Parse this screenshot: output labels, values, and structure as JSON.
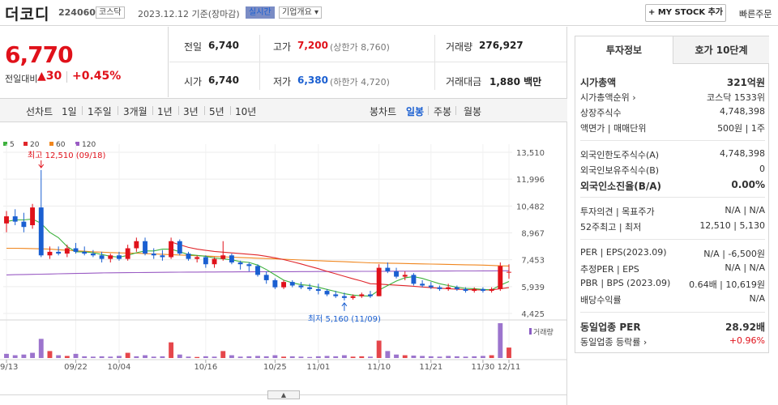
{
  "header": {
    "stock_name": "더코디",
    "stock_code": "224060",
    "market_tag": "코스닥",
    "date": "2023.12.12  기준(장마감)",
    "realtime_tag": "실시간",
    "company_tag": "기업개요 ▾",
    "mystock_button": "+ MY STOCK 추가",
    "quick_order": "빠른주문"
  },
  "price": {
    "current": "6,770",
    "vs_label": "전일대비",
    "change": "▲30",
    "change_pct": "+0.45%"
  },
  "quote": {
    "prev_close_label": "전일",
    "prev_close": "6,740",
    "high_label": "고가",
    "high": "7,200",
    "upper_limit": "(상한가 8,760)",
    "volume_label": "거래량",
    "volume": "276,927",
    "open_label": "시가",
    "open": "6,740",
    "low_label": "저가",
    "low": "6,380",
    "lower_limit": "(하한가 4,720)",
    "amount_label": "거래대금",
    "amount": "1,880 백만"
  },
  "period_tabs": {
    "line_label": "선차트",
    "line_items": [
      "1일",
      "1주일",
      "3개월",
      "1년",
      "3년",
      "5년",
      "10년"
    ],
    "candle_label": "봉차트",
    "candle_items": [
      "일봉",
      "주봉",
      "월봉"
    ],
    "active_candle": "일봉"
  },
  "chart_data": {
    "type": "candlestick",
    "ma_legend": [
      {
        "name": "5",
        "color": "#3db13d"
      },
      {
        "name": "20",
        "color": "#e0262b"
      },
      {
        "name": "60",
        "color": "#f0861e"
      },
      {
        "name": "120",
        "color": "#9a5cc4"
      }
    ],
    "y_ticks": [
      13510,
      11996,
      10482,
      8967,
      7453,
      5939,
      4425
    ],
    "y_tick_labels": [
      "13,510",
      "11,996",
      "10,482",
      "8,967",
      "7,453",
      "5,939",
      "4,425"
    ],
    "ylim": [
      4425,
      13510
    ],
    "x_labels": [
      "09/13",
      "09/22",
      "10/04",
      "10/16",
      "10/25",
      "11/01",
      "11/10",
      "11/21",
      "11/30",
      "12/11"
    ],
    "high_annotation": "최고 12,510 (09/18)",
    "low_annotation": "최저 5,160 (11/09)",
    "volume_label": "거래량",
    "candles": [
      [
        9500,
        10200,
        9000,
        9900
      ],
      [
        9900,
        10300,
        9400,
        9600
      ],
      [
        9600,
        10100,
        9000,
        9300
      ],
      [
        9400,
        10600,
        9200,
        10400
      ],
      [
        10400,
        12510,
        7600,
        7700
      ],
      [
        7700,
        8200,
        7500,
        7900
      ],
      [
        7900,
        8200,
        7700,
        7800
      ],
      [
        7800,
        8300,
        7600,
        8100
      ],
      [
        8100,
        8400,
        7800,
        7900
      ],
      [
        7900,
        8200,
        7700,
        7800
      ],
      [
        7800,
        8000,
        7600,
        7700
      ],
      [
        7700,
        7900,
        7300,
        7500
      ],
      [
        7500,
        7800,
        7300,
        7700
      ],
      [
        7700,
        7900,
        7400,
        7500
      ],
      [
        7500,
        8300,
        7400,
        8100
      ],
      [
        8100,
        8700,
        7900,
        8500
      ],
      [
        8500,
        8700,
        7700,
        7800
      ],
      [
        7800,
        8100,
        7500,
        7700
      ],
      [
        7700,
        8000,
        7400,
        7600
      ],
      [
        7600,
        8700,
        7500,
        8500
      ],
      [
        8500,
        8600,
        7700,
        7800
      ],
      [
        7800,
        7900,
        7400,
        7500
      ],
      [
        7500,
        7700,
        7300,
        7600
      ],
      [
        7600,
        7700,
        7000,
        7200
      ],
      [
        7200,
        7600,
        7000,
        7500
      ],
      [
        7500,
        8500,
        7400,
        7700
      ],
      [
        7700,
        7800,
        7200,
        7300
      ],
      [
        7300,
        7400,
        6900,
        7200
      ],
      [
        7200,
        7300,
        6800,
        7100
      ],
      [
        7100,
        7200,
        6500,
        6600
      ],
      [
        6600,
        6800,
        6100,
        6300
      ],
      [
        6300,
        6400,
        5800,
        5900
      ],
      [
        5900,
        6300,
        5800,
        6200
      ],
      [
        6200,
        6300,
        5900,
        6000
      ],
      [
        6000,
        6200,
        5800,
        5900
      ],
      [
        5900,
        6100,
        5700,
        5800
      ],
      [
        5800,
        6100,
        5500,
        5700
      ],
      [
        5700,
        5800,
        5400,
        5500
      ],
      [
        5500,
        5700,
        5300,
        5400
      ],
      [
        5400,
        5600,
        5160,
        5300
      ],
      [
        5300,
        5500,
        5200,
        5400
      ],
      [
        5400,
        5600,
        5300,
        5500
      ],
      [
        5500,
        5700,
        5300,
        5400
      ],
      [
        5400,
        7200,
        5400,
        7000
      ],
      [
        7000,
        7300,
        6700,
        6800
      ],
      [
        6800,
        7000,
        6400,
        6500
      ],
      [
        6500,
        6800,
        6300,
        6600
      ],
      [
        6600,
        6700,
        6000,
        6100
      ],
      [
        6100,
        6300,
        5900,
        6000
      ],
      [
        6000,
        6200,
        5800,
        5900
      ],
      [
        5900,
        6000,
        5700,
        5800
      ],
      [
        5800,
        6100,
        5700,
        5900
      ],
      [
        5900,
        6000,
        5700,
        5800
      ],
      [
        5800,
        5900,
        5600,
        5700
      ],
      [
        5700,
        5900,
        5600,
        5800
      ],
      [
        5800,
        5900,
        5600,
        5700
      ],
      [
        5700,
        5900,
        5600,
        5800
      ],
      [
        5800,
        7300,
        5700,
        7100
      ],
      [
        6740,
        7200,
        6380,
        6770
      ]
    ],
    "volumes": [
      0.12,
      0.08,
      0.1,
      0.15,
      0.55,
      0.2,
      0.08,
      0.06,
      0.12,
      0.05,
      0.04,
      0.05,
      0.04,
      0.06,
      0.15,
      0.05,
      0.08,
      0.04,
      0.05,
      0.45,
      0.1,
      0.04,
      0.03,
      0.05,
      0.04,
      0.2,
      0.08,
      0.04,
      0.05,
      0.06,
      0.05,
      0.08,
      0.04,
      0.05,
      0.04,
      0.03,
      0.05,
      0.06,
      0.05,
      0.08,
      0.04,
      0.05,
      0.04,
      0.5,
      0.2,
      0.1,
      0.08,
      0.07,
      0.06,
      0.05,
      0.04,
      0.06,
      0.05,
      0.04,
      0.05,
      0.06,
      0.08,
      1.0,
      0.3
    ],
    "ma5": [
      9600,
      9700,
      9700,
      9750,
      9500,
      9000,
      8700,
      8200,
      7900,
      7900,
      7850,
      7750,
      7650,
      7600,
      7700,
      7850,
      7950,
      7950,
      8050,
      8050,
      7900,
      7750,
      7700,
      7650,
      7550,
      7500,
      7450,
      7350,
      7300,
      7150,
      6900,
      6600,
      6300,
      6150,
      6050,
      6000,
      5900,
      5780,
      5660,
      5540,
      5460,
      5420,
      5400,
      5740,
      6000,
      6250,
      6440,
      6500,
      6400,
      6250,
      6100,
      6000,
      5900,
      5840,
      5820,
      5780,
      5760,
      6020,
      6230
    ],
    "ma20": [
      null,
      null,
      null,
      null,
      null,
      null,
      null,
      null,
      null,
      null,
      null,
      null,
      null,
      null,
      null,
      null,
      null,
      null,
      null,
      8450,
      8300,
      8150,
      8050,
      7980,
      7920,
      7880,
      7840,
      7800,
      7760,
      7720,
      7650,
      7560,
      7460,
      7340,
      7220,
      7080,
      6950,
      6800,
      6660,
      6520,
      6380,
      6250,
      6100,
      6080,
      6050,
      6020,
      5990,
      5960,
      5920,
      5880,
      5850,
      5820,
      5790,
      5770,
      5760,
      5750,
      5750,
      5820,
      5880
    ],
    "ma60": [
      8100,
      8100,
      8090,
      8080,
      8070,
      8050,
      8020,
      7990,
      7960,
      7930,
      7900,
      7880,
      7860,
      7840,
      7830,
      7820,
      7800,
      7780,
      7760,
      7740,
      7720,
      7700,
      7680,
      7660,
      7640,
      7620,
      7600,
      7580,
      7560,
      7540,
      7520,
      7500,
      7480,
      7460,
      7440,
      7420,
      7400,
      7380,
      7360,
      7340,
      7320,
      7300,
      7280,
      7270,
      7260,
      7250,
      7240,
      7230,
      7220,
      7210,
      7200,
      7190,
      7180,
      7170,
      7160,
      7150,
      7130,
      7110,
      7100
    ],
    "ma120": [
      6600,
      6610,
      6620,
      6630,
      6640,
      6650,
      6660,
      6670,
      6680,
      6690,
      6700,
      6710,
      6715,
      6720,
      6725,
      6730,
      6735,
      6740,
      6745,
      6750,
      6755,
      6758,
      6760,
      6762,
      6764,
      6766,
      6768,
      6770,
      6772,
      6774,
      6776,
      6778,
      6780,
      6782,
      6784,
      6786,
      6788,
      6790,
      6792,
      6794,
      6796,
      6798,
      6800,
      6802,
      6804,
      6806,
      6808,
      6810,
      6812,
      6814,
      6816,
      6818,
      6820,
      6822,
      6824,
      6826,
      6828,
      6830,
      6832
    ]
  },
  "invest_panel": {
    "tab_active": "투자정보",
    "tab_inactive": "호가 10단계",
    "rows1": [
      {
        "l": "시가총액",
        "r": "321억원",
        "bold": true
      },
      {
        "l": "시가총액순위 ›",
        "r": "코스닥  1533위"
      },
      {
        "l": "상장주식수",
        "r": "4,748,398"
      },
      {
        "l": "액면가 | 매매단위",
        "r": "500원 | 1주"
      }
    ],
    "rows2": [
      {
        "l": "외국인한도주식수(A)",
        "r": "4,748,398"
      },
      {
        "l": "외국인보유주식수(B)",
        "r": "0"
      },
      {
        "l": "외국인소진율(B/A)",
        "r": "0.00%",
        "bold": true
      }
    ],
    "rows3": [
      {
        "l": "투자의견 | 목표주가",
        "r": "N/A | N/A"
      },
      {
        "l": "52주최고 | 최저",
        "r": "12,510 | 5,130"
      }
    ],
    "rows4": [
      {
        "l": "PER | EPS(2023.09)",
        "r": "N/A | -6,500원"
      },
      {
        "l": "추정PER | EPS",
        "r": "N/A | N/A"
      },
      {
        "l": "PBR | BPS (2023.09)",
        "r": "0.64배 | 10,619원"
      },
      {
        "l": "배당수익률",
        "r": "N/A"
      }
    ],
    "rows5": [
      {
        "l": "동일업종 PER",
        "r": "28.92배",
        "bold": true
      },
      {
        "l": "동일업종 등락률 ›",
        "r": "+0.96%",
        "red": true
      }
    ]
  },
  "colors": {
    "up": "#e0111a",
    "down": "#1a5fd1",
    "accent": "#7a8cc5"
  }
}
